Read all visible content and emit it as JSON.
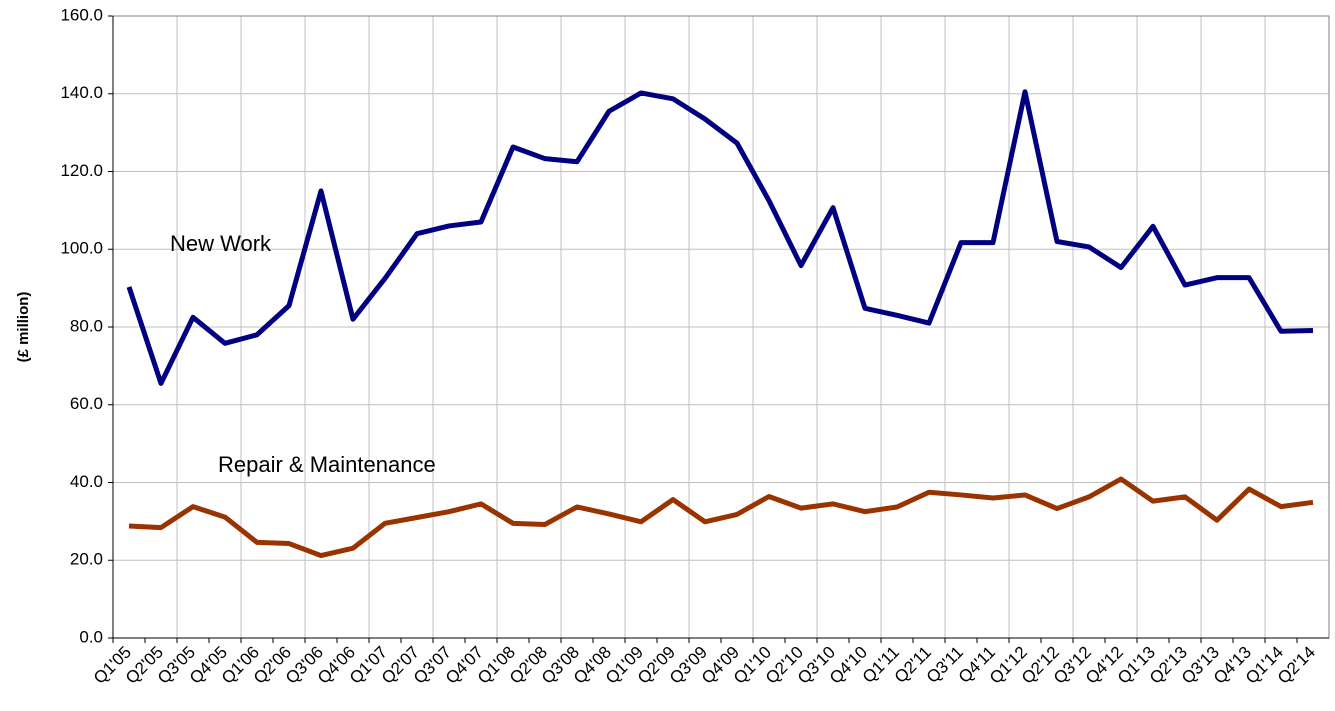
{
  "chart_data": {
    "type": "line",
    "y_label": "(£ million)",
    "categories": [
      "Q1'05",
      "Q2'05",
      "Q3'05",
      "Q4'05",
      "Q1'06",
      "Q2'06",
      "Q3'06",
      "Q4'06",
      "Q1'07",
      "Q2'07",
      "Q3'07",
      "Q4'07",
      "Q1'08",
      "Q2'08",
      "Q3'08",
      "Q4'08",
      "Q1'09",
      "Q2'09",
      "Q3'09",
      "Q4'09",
      "Q1'10",
      "Q2'10",
      "Q3'10",
      "Q4'10",
      "Q1'11",
      "Q2'11",
      "Q3'11",
      "Q4'11",
      "Q1'12",
      "Q2'12",
      "Q3'12",
      "Q4'12",
      "Q1'13",
      "Q2'13",
      "Q3'13",
      "Q4'13",
      "Q1'14",
      "Q2'14"
    ],
    "series": [
      {
        "name": "New Work",
        "color": "#000080",
        "values": [
          90.3,
          65.5,
          82.5,
          75.8,
          78,
          85.5,
          115,
          82,
          92.5,
          104,
          106,
          107,
          126.3,
          123.3,
          122.5,
          135.5,
          140.2,
          138.7,
          133.5,
          127.3,
          112.5,
          95.8,
          110.7,
          84.8,
          83,
          81,
          101.7,
          101.7,
          140.5,
          102,
          100.6,
          95.3,
          105.9,
          90.8,
          92.7,
          92.7,
          78.9,
          79.1
        ]
      },
      {
        "name": "Repair & Maintenance",
        "color": "#993300",
        "values": [
          28.8,
          28.4,
          33.8,
          31.1,
          24.6,
          24.3,
          21.2,
          23.1,
          29.5,
          31,
          32.5,
          34.5,
          29.5,
          29.2,
          33.7,
          31.9,
          29.9,
          35.6,
          29.9,
          31.8,
          36.4,
          33.4,
          34.5,
          32.5,
          33.7,
          37.5,
          36.8,
          36,
          36.8,
          33.3,
          36.3,
          40.9,
          35.2,
          36.3,
          30.3,
          38.3,
          33.8,
          34.9
        ]
      }
    ],
    "ylim": [
      0,
      160
    ],
    "yticks": [
      {
        "value": 0,
        "label": "0.0"
      },
      {
        "value": 20,
        "label": "20.0"
      },
      {
        "value": 40,
        "label": "40.0"
      },
      {
        "value": 60,
        "label": "60.0"
      },
      {
        "value": 80,
        "label": "80.0"
      },
      {
        "value": 100,
        "label": "100.0"
      },
      {
        "value": 120,
        "label": "120.0"
      },
      {
        "value": 140,
        "label": "140.0"
      },
      {
        "value": 160,
        "label": "160.0"
      }
    ],
    "grid": true
  }
}
